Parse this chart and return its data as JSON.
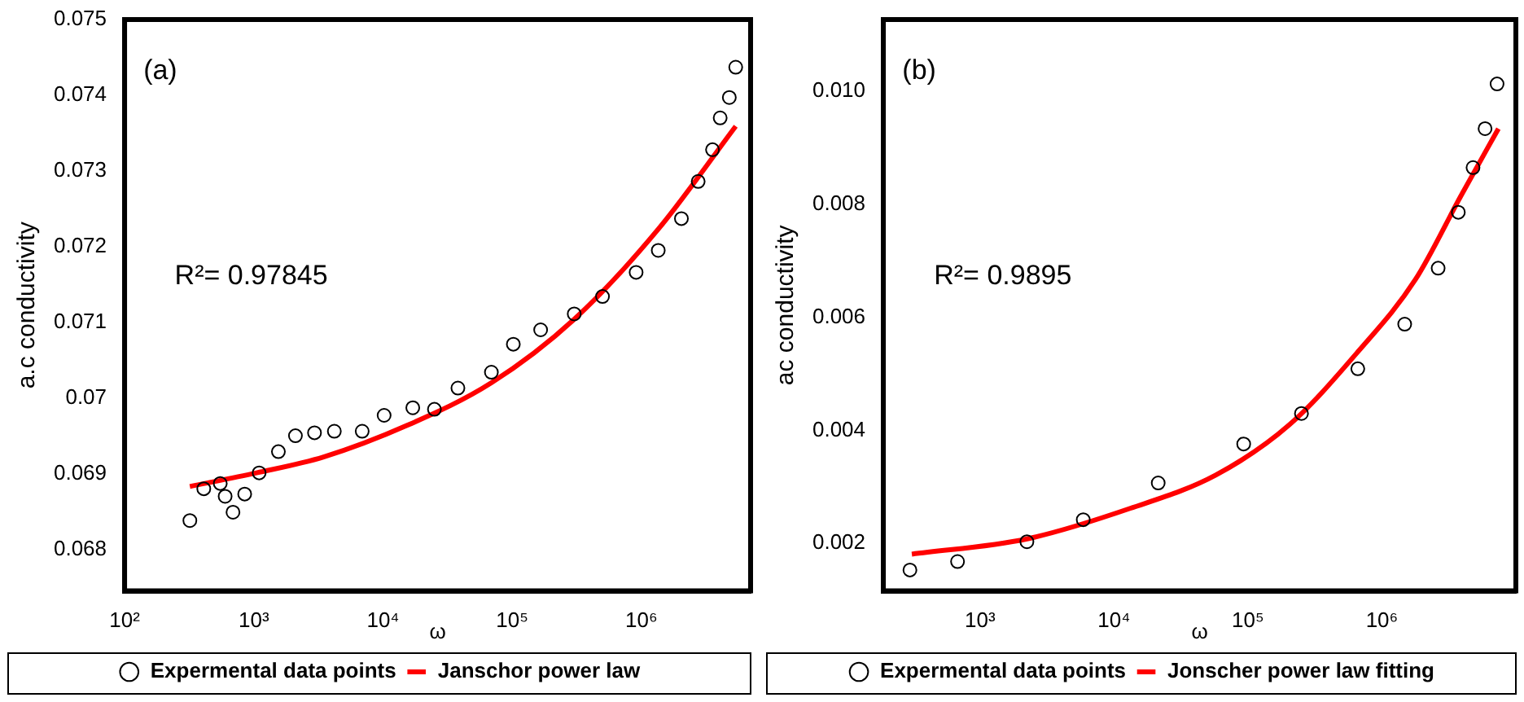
{
  "chart_data": [
    {
      "type": "scatter",
      "xlabel": "ω",
      "ylabel": "a.c conductivity",
      "log": "x",
      "grid": false,
      "legend": "bottom",
      "xlim": [
        100,
        7000000
      ],
      "xticks": [
        {
          "value": 100,
          "label": "10²"
        },
        {
          "value": 1000,
          "label": "10³"
        },
        {
          "value": 10000,
          "label": "10⁴"
        },
        {
          "value": 100000,
          "label": "10⁵"
        },
        {
          "value": 1000000,
          "label": "10⁶"
        }
      ],
      "ylim": [
        0.06745,
        0.075
      ],
      "yticks": [
        0.068,
        0.069,
        0.07,
        0.071,
        0.072,
        0.073,
        0.074,
        0.075
      ],
      "annotations": [
        "(a)",
        "R²= 0.97845"
      ],
      "series": [
        {
          "name": "Expermental data points",
          "marker": "circle",
          "color": "#000000",
          "x": [
            320,
            410,
            550,
            600,
            690,
            850,
            1100,
            1550,
            2100,
            2950,
            4200,
            6900,
            10200,
            17000,
            25000,
            38000,
            69000,
            102000,
            166000,
            302000,
            500000,
            910000,
            1350000,
            2040000,
            2750000,
            3550000,
            4070000,
            4790000,
            5370000
          ],
          "values": [
            0.06838,
            0.0688,
            0.06887,
            0.0687,
            0.06849,
            0.06873,
            0.06901,
            0.06929,
            0.0695,
            0.06954,
            0.06956,
            0.06956,
            0.06977,
            0.06987,
            0.06985,
            0.07013,
            0.07034,
            0.07071,
            0.0709,
            0.07111,
            0.07134,
            0.07166,
            0.07195,
            0.07237,
            0.07286,
            0.07328,
            0.0737,
            0.07397,
            0.07437
          ]
        },
        {
          "name": "Janschor power law",
          "type": "line",
          "marker": "none",
          "color": "#ff0000",
          "x": [
            320,
            1050,
            3470,
            15500,
            69000,
            302000,
            1350000,
            5370000
          ],
          "values": [
            0.06883,
            0.06901,
            0.06922,
            0.06964,
            0.0702,
            0.07104,
            0.07223,
            0.07359
          ]
        }
      ]
    },
    {
      "type": "scatter",
      "xlabel": "ω",
      "ylabel": "ac conductivity",
      "log": "x",
      "grid": false,
      "legend": "bottom",
      "xlim": [
        190,
        10000000
      ],
      "xticks": [
        {
          "value": 1000,
          "label": "10³"
        },
        {
          "value": 10000,
          "label": "10⁴"
        },
        {
          "value": 100000,
          "label": "10⁵"
        },
        {
          "value": 1000000,
          "label": "10⁶"
        }
      ],
      "ylim": [
        0.00116,
        0.01127
      ],
      "yticks": [
        0.002,
        0.004,
        0.006,
        0.008,
        {
          "value": 0.01,
          "label": "0.010"
        }
      ],
      "annotations": [
        "(b)",
        "R²= 0.9895"
      ],
      "series": [
        {
          "name": "Expermental data points",
          "marker": "circle",
          "color": "#000000",
          "x": [
            300,
            680,
            2240,
            5900,
            21400,
            93000,
            251000,
            661000,
            1480000,
            2630000,
            3720000,
            4790000,
            5890000,
            7240000
          ],
          "values": [
            0.00153,
            0.00168,
            0.00203,
            0.00242,
            0.00307,
            0.00376,
            0.0043,
            0.00509,
            0.00588,
            0.00687,
            0.00786,
            0.00865,
            0.00934,
            0.01013
          ]
        },
        {
          "name": "Jonscher power law fitting",
          "type": "line",
          "marker": "none",
          "color": "#ff0000",
          "x": [
            310,
            2240,
            13200,
            57500,
            204000,
            661000,
            1780000,
            3890000,
            7410000
          ],
          "values": [
            0.00181,
            0.00208,
            0.00262,
            0.00321,
            0.0041,
            0.00539,
            0.00667,
            0.00815,
            0.00934
          ]
        }
      ]
    }
  ]
}
